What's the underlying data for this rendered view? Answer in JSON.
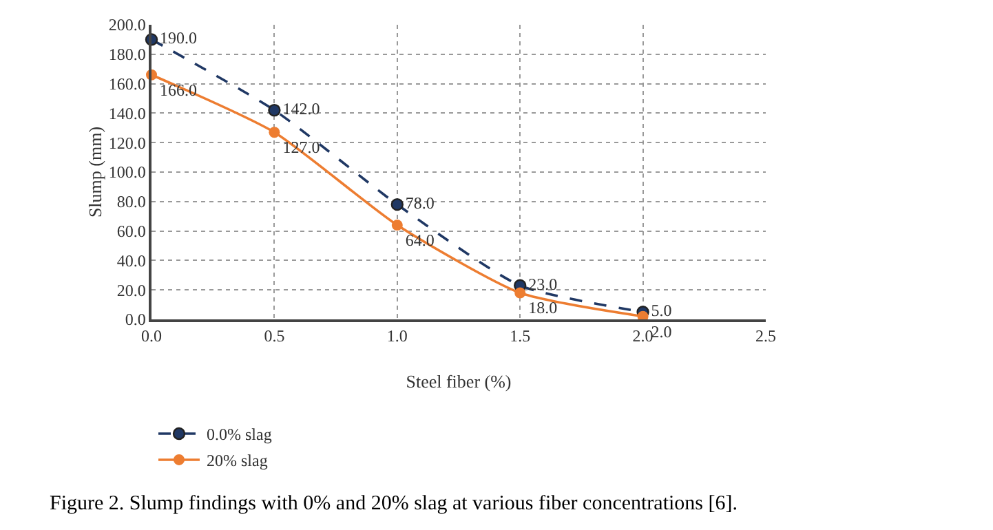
{
  "chart_data": {
    "type": "line",
    "xlabel": "Steel fiber (%)",
    "ylabel": "Slump (mm)",
    "x": [
      0.0,
      0.5,
      1.0,
      1.5,
      2.0
    ],
    "series": [
      {
        "name": "0.0% slag",
        "color": "#203864",
        "values": [
          190.0,
          142.0,
          78.0,
          23.0,
          5.0
        ],
        "line_style": "dashed",
        "value_labels": [
          "190.0",
          "142.0",
          "78.0",
          "23.0",
          "5.0"
        ]
      },
      {
        "name": "20% slag",
        "color": "#ed7d31",
        "values": [
          166.0,
          127.0,
          64.0,
          18.0,
          2.0
        ],
        "line_style": "solid",
        "value_labels": [
          "166.0",
          "127.0",
          "64.0",
          "18.0",
          "2.0"
        ]
      }
    ],
    "xlim": [
      0.0,
      2.5
    ],
    "xticks": [
      {
        "value": 0,
        "label": "0.0"
      },
      {
        "value": 0.5,
        "label": "0.5"
      },
      {
        "value": 1,
        "label": "1.0"
      },
      {
        "value": 1.5,
        "label": "1.5"
      },
      {
        "value": 2,
        "label": "2.0"
      },
      {
        "value": 2.5,
        "label": "2.5"
      }
    ],
    "ylim": [
      0.0,
      200.0
    ],
    "yticks": [
      {
        "value": 0,
        "label": "0.0"
      },
      {
        "value": 20,
        "label": "20.0"
      },
      {
        "value": 40,
        "label": "40.0"
      },
      {
        "value": 60,
        "label": "60.0"
      },
      {
        "value": 80,
        "label": "80.0"
      },
      {
        "value": 100,
        "label": "100.0"
      },
      {
        "value": 120,
        "label": "120.0"
      },
      {
        "value": 140,
        "label": "140.0"
      },
      {
        "value": 160,
        "label": "160.0"
      },
      {
        "value": 180,
        "label": "180.0"
      },
      {
        "value": 200,
        "label": "200.0"
      }
    ],
    "grid": true,
    "legend": "bottom",
    "marker": "circle",
    "annotations": [
      "Figure 2. Slump findings with 0% and 20% slag at various fiber concentrations [6]."
    ]
  }
}
